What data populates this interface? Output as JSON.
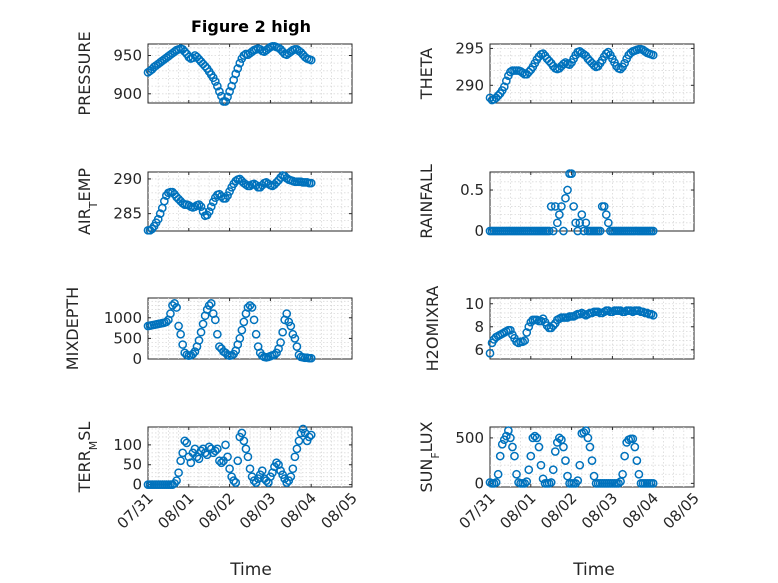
{
  "figure": {
    "marker_color": "#0072BD",
    "x_axis": {
      "min": "07/31",
      "max": "08/05",
      "ticks": [
        "07/31",
        "08/01",
        "08/02",
        "08/03",
        "08/04",
        "08/05"
      ],
      "label": "Time"
    }
  },
  "chart_data": [
    {
      "type": "scatter",
      "title": "Figure 2 high",
      "ylabel": "PRESSURE",
      "ylim": [
        888,
        965
      ],
      "yticks": [
        900,
        950
      ],
      "x": [
        0.0,
        0.05,
        0.1,
        0.15,
        0.2,
        0.25,
        0.3,
        0.35,
        0.4,
        0.45,
        0.5,
        0.55,
        0.6,
        0.65,
        0.7,
        0.75,
        0.8,
        0.85,
        0.9,
        0.95,
        1.0,
        1.05,
        1.1,
        1.15,
        1.2,
        1.25,
        1.3,
        1.35,
        1.4,
        1.45,
        1.5,
        1.55,
        1.6,
        1.65,
        1.7,
        1.75,
        1.8,
        1.85,
        1.9,
        1.95,
        2.0,
        2.05,
        2.1,
        2.15,
        2.2,
        2.25,
        2.3,
        2.35,
        2.4,
        2.45,
        2.5,
        2.55,
        2.6,
        2.65,
        2.7,
        2.75,
        2.8,
        2.85,
        2.9,
        2.95,
        3.0,
        3.05,
        3.1,
        3.15,
        3.2,
        3.25,
        3.3,
        3.35,
        3.4,
        3.45,
        3.5,
        3.55,
        3.6,
        3.65,
        3.7,
        3.75,
        3.8,
        3.85,
        3.9,
        3.95,
        4.0
      ],
      "y": [
        928,
        930,
        932,
        935,
        937,
        939,
        941,
        943,
        945,
        947,
        949,
        951,
        953,
        955,
        957,
        958,
        959,
        958,
        955,
        952,
        948,
        946,
        947,
        950,
        948,
        945,
        942,
        939,
        936,
        933,
        929,
        925,
        921,
        916,
        910,
        903,
        897,
        890,
        890,
        896,
        903,
        910,
        918,
        926,
        933,
        940,
        946,
        950,
        952,
        951,
        953,
        955,
        957,
        958,
        959,
        958,
        956,
        955,
        957,
        959,
        961,
        962,
        962,
        961,
        960,
        958,
        955,
        952,
        951,
        953,
        955,
        957,
        958,
        958,
        956,
        954,
        951,
        948,
        946,
        945,
        944
      ]
    },
    {
      "type": "scatter",
      "ylabel": "THETA",
      "ylim": [
        287.6,
        295.6
      ],
      "yticks": [
        290,
        295
      ],
      "x": [
        0.0,
        0.05,
        0.1,
        0.15,
        0.2,
        0.25,
        0.3,
        0.35,
        0.4,
        0.45,
        0.5,
        0.55,
        0.6,
        0.65,
        0.7,
        0.75,
        0.8,
        0.85,
        0.9,
        0.95,
        1.0,
        1.05,
        1.1,
        1.15,
        1.2,
        1.25,
        1.3,
        1.35,
        1.4,
        1.45,
        1.5,
        1.55,
        1.6,
        1.65,
        1.7,
        1.75,
        1.8,
        1.85,
        1.9,
        1.95,
        2.0,
        2.05,
        2.1,
        2.15,
        2.2,
        2.25,
        2.3,
        2.35,
        2.4,
        2.45,
        2.5,
        2.55,
        2.6,
        2.65,
        2.7,
        2.75,
        2.8,
        2.85,
        2.9,
        2.95,
        3.0,
        3.05,
        3.1,
        3.15,
        3.2,
        3.25,
        3.3,
        3.35,
        3.4,
        3.45,
        3.5,
        3.55,
        3.6,
        3.65,
        3.7,
        3.75,
        3.8,
        3.85,
        3.9,
        3.95,
        4.0
      ],
      "y": [
        288.3,
        288.0,
        288.1,
        288.3,
        288.6,
        288.9,
        289.3,
        289.8,
        290.6,
        291.3,
        291.8,
        292.0,
        292.0,
        292.0,
        292.0,
        291.9,
        291.7,
        291.5,
        291.5,
        291.8,
        292.1,
        292.5,
        293.0,
        293.5,
        293.9,
        294.2,
        294.3,
        294.0,
        293.6,
        293.3,
        293.0,
        292.6,
        292.3,
        292.2,
        292.3,
        292.6,
        292.9,
        293.1,
        292.9,
        292.8,
        293.1,
        293.6,
        294.1,
        294.5,
        294.6,
        294.4,
        294.2,
        294.0,
        293.6,
        293.3,
        293.0,
        292.7,
        292.5,
        292.6,
        293.0,
        293.4,
        293.9,
        294.3,
        294.5,
        294.1,
        293.6,
        293.1,
        292.6,
        292.3,
        292.2,
        292.5,
        293.0,
        293.6,
        294.1,
        294.4,
        294.6,
        294.7,
        294.8,
        294.9,
        294.9,
        294.8,
        294.6,
        294.4,
        294.3,
        294.2,
        294.1
      ]
    },
    {
      "type": "scatter",
      "ylabel": "AIR_TEMP",
      "ylim": [
        282.5,
        291.0
      ],
      "yticks": [
        285,
        290
      ],
      "x": [
        0.0,
        0.05,
        0.1,
        0.15,
        0.2,
        0.25,
        0.3,
        0.35,
        0.4,
        0.45,
        0.5,
        0.55,
        0.6,
        0.65,
        0.7,
        0.75,
        0.8,
        0.85,
        0.9,
        0.95,
        1.0,
        1.05,
        1.1,
        1.15,
        1.2,
        1.25,
        1.3,
        1.35,
        1.4,
        1.45,
        1.5,
        1.55,
        1.6,
        1.65,
        1.7,
        1.75,
        1.8,
        1.85,
        1.9,
        1.95,
        2.0,
        2.05,
        2.1,
        2.15,
        2.2,
        2.25,
        2.3,
        2.35,
        2.4,
        2.45,
        2.5,
        2.55,
        2.6,
        2.65,
        2.7,
        2.75,
        2.8,
        2.85,
        2.9,
        2.95,
        3.0,
        3.05,
        3.1,
        3.15,
        3.2,
        3.25,
        3.3,
        3.35,
        3.4,
        3.45,
        3.5,
        3.55,
        3.6,
        3.65,
        3.7,
        3.75,
        3.8,
        3.85,
        3.9,
        3.95,
        4.0
      ],
      "y": [
        282.6,
        282.6,
        282.8,
        283.2,
        283.7,
        284.2,
        285.0,
        285.8,
        286.8,
        287.6,
        288.0,
        288.1,
        288.1,
        287.8,
        287.4,
        287.1,
        286.8,
        286.5,
        286.3,
        286.3,
        286.2,
        286.0,
        285.9,
        286.0,
        286.2,
        286.3,
        286.0,
        285.3,
        284.7,
        284.8,
        285.3,
        286.0,
        286.7,
        287.3,
        287.7,
        287.8,
        287.5,
        287.2,
        287.2,
        287.6,
        288.2,
        288.8,
        289.3,
        289.7,
        289.9,
        290.0,
        289.7,
        289.4,
        289.2,
        289.0,
        289.0,
        289.2,
        289.3,
        289.1,
        288.8,
        288.8,
        289.1,
        289.4,
        289.5,
        289.3,
        289.1,
        289.0,
        289.2,
        289.5,
        289.8,
        290.2,
        290.5,
        290.4,
        290.1,
        289.9,
        289.8,
        289.7,
        289.6,
        289.6,
        289.6,
        289.6,
        289.5,
        289.5,
        289.5,
        289.4,
        289.4
      ]
    },
    {
      "type": "scatter",
      "ylabel": "RAINFALL",
      "ylim": [
        0,
        0.72
      ],
      "yticks": [
        0,
        0.5
      ],
      "x": [
        0.0,
        0.05,
        0.1,
        0.15,
        0.2,
        0.25,
        0.3,
        0.35,
        0.4,
        0.45,
        0.5,
        0.55,
        0.6,
        0.65,
        0.7,
        0.75,
        0.8,
        0.85,
        0.9,
        0.95,
        1.0,
        1.05,
        1.1,
        1.15,
        1.2,
        1.25,
        1.3,
        1.35,
        1.4,
        1.45,
        1.5,
        1.55,
        1.6,
        1.65,
        1.7,
        1.75,
        1.8,
        1.85,
        1.9,
        1.95,
        2.0,
        2.05,
        2.1,
        2.15,
        2.2,
        2.25,
        2.3,
        2.35,
        2.4,
        2.45,
        2.5,
        2.55,
        2.6,
        2.65,
        2.7,
        2.75,
        2.8,
        2.85,
        2.9,
        2.95,
        3.0,
        3.05,
        3.1,
        3.15,
        3.2,
        3.25,
        3.3,
        3.35,
        3.4,
        3.45,
        3.5,
        3.55,
        3.6,
        3.65,
        3.7,
        3.75,
        3.8,
        3.85,
        3.9,
        3.95,
        4.0
      ],
      "y": [
        0,
        0,
        0,
        0,
        0,
        0,
        0,
        0,
        0,
        0,
        0,
        0,
        0,
        0,
        0,
        0,
        0,
        0,
        0,
        0,
        0,
        0,
        0,
        0,
        0,
        0,
        0,
        0,
        0,
        0,
        0.3,
        0,
        0.3,
        0.1,
        0.2,
        0.3,
        0,
        0.4,
        0.5,
        0.7,
        0.7,
        0.3,
        0.1,
        0,
        0.1,
        0.2,
        0,
        0.1,
        0,
        0,
        0,
        0,
        0,
        0,
        0,
        0.3,
        0.3,
        0.2,
        0.1,
        0,
        0,
        0,
        0,
        0,
        0,
        0,
        0,
        0,
        0,
        0,
        0,
        0,
        0,
        0,
        0,
        0,
        0,
        0,
        0,
        0,
        0
      ]
    },
    {
      "type": "scatter",
      "ylabel": "MIXDEPTH",
      "ylim": [
        0,
        1480
      ],
      "yticks": [
        0,
        500,
        1000
      ],
      "x": [
        0.0,
        0.05,
        0.1,
        0.15,
        0.2,
        0.25,
        0.3,
        0.35,
        0.4,
        0.45,
        0.5,
        0.55,
        0.6,
        0.65,
        0.7,
        0.75,
        0.8,
        0.85,
        0.9,
        0.95,
        1.0,
        1.05,
        1.1,
        1.15,
        1.2,
        1.25,
        1.3,
        1.35,
        1.4,
        1.45,
        1.5,
        1.55,
        1.6,
        1.65,
        1.7,
        1.75,
        1.8,
        1.85,
        1.9,
        1.95,
        2.0,
        2.05,
        2.1,
        2.15,
        2.2,
        2.25,
        2.3,
        2.35,
        2.4,
        2.45,
        2.5,
        2.55,
        2.6,
        2.65,
        2.7,
        2.75,
        2.8,
        2.85,
        2.9,
        2.95,
        3.0,
        3.05,
        3.1,
        3.15,
        3.2,
        3.25,
        3.3,
        3.35,
        3.4,
        3.45,
        3.5,
        3.55,
        3.6,
        3.65,
        3.7,
        3.75,
        3.8,
        3.85,
        3.9,
        3.95,
        4.0
      ],
      "y": [
        800,
        810,
        820,
        830,
        840,
        850,
        860,
        870,
        880,
        900,
        950,
        1100,
        1300,
        1350,
        1250,
        800,
        600,
        350,
        150,
        100,
        80,
        90,
        120,
        180,
        300,
        450,
        650,
        850,
        1050,
        1200,
        1300,
        1350,
        1100,
        950,
        600,
        300,
        250,
        180,
        150,
        100,
        80,
        90,
        120,
        200,
        350,
        500,
        700,
        900,
        1100,
        1250,
        1300,
        1250,
        950,
        600,
        300,
        150,
        80,
        50,
        40,
        50,
        70,
        90,
        100,
        150,
        250,
        400,
        650,
        950,
        1100,
        900,
        800,
        600,
        500,
        300,
        100,
        50,
        40,
        30,
        30,
        20,
        20
      ]
    },
    {
      "type": "scatter",
      "ylabel": "H2OMIXRA",
      "ylim": [
        5.2,
        10.5
      ],
      "yticks": [
        6,
        8,
        10
      ],
      "x": [
        0.0,
        0.05,
        0.1,
        0.15,
        0.2,
        0.25,
        0.3,
        0.35,
        0.4,
        0.45,
        0.5,
        0.55,
        0.6,
        0.65,
        0.7,
        0.75,
        0.8,
        0.85,
        0.9,
        0.95,
        1.0,
        1.05,
        1.1,
        1.15,
        1.2,
        1.25,
        1.3,
        1.35,
        1.4,
        1.45,
        1.5,
        1.55,
        1.6,
        1.65,
        1.7,
        1.75,
        1.8,
        1.85,
        1.9,
        1.95,
        2.0,
        2.05,
        2.1,
        2.15,
        2.2,
        2.25,
        2.3,
        2.35,
        2.4,
        2.45,
        2.5,
        2.55,
        2.6,
        2.65,
        2.7,
        2.75,
        2.8,
        2.85,
        2.9,
        2.95,
        3.0,
        3.05,
        3.1,
        3.15,
        3.2,
        3.25,
        3.3,
        3.35,
        3.4,
        3.45,
        3.5,
        3.55,
        3.6,
        3.65,
        3.7,
        3.75,
        3.8,
        3.85,
        3.9,
        3.95,
        4.0
      ],
      "y": [
        5.7,
        6.6,
        6.9,
        7.1,
        7.2,
        7.3,
        7.4,
        7.5,
        7.6,
        7.7,
        7.7,
        7.3,
        7.0,
        6.7,
        6.6,
        6.7,
        6.7,
        6.8,
        7.5,
        8.0,
        8.4,
        8.6,
        8.6,
        8.6,
        8.5,
        8.5,
        8.7,
        8.4,
        8.1,
        7.9,
        7.9,
        8.1,
        8.3,
        8.6,
        8.7,
        8.8,
        8.8,
        8.8,
        8.8,
        8.9,
        8.9,
        8.9,
        9.0,
        9.1,
        9.1,
        9.2,
        9.1,
        9.0,
        9.1,
        9.2,
        9.2,
        9.3,
        9.3,
        9.3,
        9.2,
        9.2,
        9.3,
        9.4,
        9.4,
        9.3,
        9.3,
        9.4,
        9.4,
        9.4,
        9.4,
        9.3,
        9.3,
        9.4,
        9.4,
        9.4,
        9.3,
        9.4,
        9.4,
        9.4,
        9.3,
        9.3,
        9.2,
        9.2,
        9.1,
        9.1,
        9.0
      ]
    },
    {
      "type": "scatter",
      "ylabel": "TERR_MSL",
      "ylim": [
        -6,
        145
      ],
      "yticks": [
        0,
        50,
        100
      ],
      "x": [
        0.0,
        0.05,
        0.1,
        0.15,
        0.2,
        0.25,
        0.3,
        0.35,
        0.4,
        0.45,
        0.5,
        0.55,
        0.6,
        0.65,
        0.7,
        0.75,
        0.8,
        0.85,
        0.9,
        0.95,
        1.0,
        1.05,
        1.1,
        1.15,
        1.2,
        1.25,
        1.3,
        1.35,
        1.4,
        1.45,
        1.5,
        1.55,
        1.6,
        1.65,
        1.7,
        1.75,
        1.8,
        1.85,
        1.9,
        1.95,
        2.0,
        2.05,
        2.1,
        2.15,
        2.2,
        2.25,
        2.3,
        2.35,
        2.4,
        2.45,
        2.5,
        2.55,
        2.6,
        2.65,
        2.7,
        2.75,
        2.8,
        2.85,
        2.9,
        2.95,
        3.0,
        3.05,
        3.1,
        3.15,
        3.2,
        3.25,
        3.3,
        3.35,
        3.4,
        3.45,
        3.5,
        3.55,
        3.6,
        3.65,
        3.7,
        3.75,
        3.8,
        3.85,
        3.9,
        3.95,
        4.0
      ],
      "y": [
        0,
        0,
        0,
        0,
        0,
        0,
        0,
        0,
        0,
        0,
        0,
        0,
        0,
        3,
        10,
        30,
        60,
        80,
        110,
        105,
        70,
        55,
        80,
        90,
        70,
        65,
        85,
        90,
        80,
        75,
        95,
        90,
        80,
        85,
        90,
        60,
        55,
        60,
        100,
        70,
        40,
        20,
        10,
        5,
        60,
        120,
        130,
        110,
        90,
        70,
        40,
        20,
        10,
        5,
        15,
        25,
        35,
        15,
        10,
        5,
        20,
        30,
        45,
        55,
        50,
        35,
        25,
        15,
        5,
        10,
        20,
        40,
        70,
        90,
        110,
        130,
        140,
        130,
        110,
        120,
        125
      ]
    },
    {
      "type": "scatter",
      "ylabel": "SUN_FLUX",
      "ylim": [
        -40,
        620
      ],
      "yticks": [
        0,
        500
      ],
      "x": [
        0.0,
        0.05,
        0.1,
        0.15,
        0.2,
        0.25,
        0.3,
        0.35,
        0.4,
        0.45,
        0.5,
        0.55,
        0.6,
        0.65,
        0.7,
        0.75,
        0.8,
        0.85,
        0.9,
        0.95,
        1.0,
        1.05,
        1.1,
        1.15,
        1.2,
        1.25,
        1.3,
        1.35,
        1.4,
        1.45,
        1.5,
        1.55,
        1.6,
        1.65,
        1.7,
        1.75,
        1.8,
        1.85,
        1.9,
        1.95,
        2.0,
        2.05,
        2.1,
        2.15,
        2.2,
        2.25,
        2.3,
        2.35,
        2.4,
        2.45,
        2.5,
        2.55,
        2.6,
        2.65,
        2.7,
        2.75,
        2.8,
        2.85,
        2.9,
        2.95,
        3.0,
        3.05,
        3.1,
        3.15,
        3.2,
        3.25,
        3.3,
        3.35,
        3.4,
        3.45,
        3.5,
        3.55,
        3.6,
        3.65,
        3.7,
        3.75,
        3.8,
        3.85,
        3.9,
        3.95,
        4.0
      ],
      "y": [
        10,
        0,
        0,
        10,
        100,
        300,
        430,
        480,
        520,
        580,
        500,
        400,
        300,
        100,
        10,
        0,
        0,
        0,
        20,
        150,
        300,
        500,
        520,
        500,
        400,
        200,
        50,
        0,
        0,
        0,
        10,
        150,
        350,
        450,
        500,
        480,
        400,
        250,
        80,
        0,
        0,
        0,
        0,
        30,
        200,
        550,
        560,
        580,
        500,
        400,
        250,
        80,
        0,
        0,
        0,
        0,
        0,
        0,
        0,
        0,
        0,
        0,
        0,
        0,
        20,
        100,
        300,
        450,
        480,
        490,
        490,
        400,
        250,
        100,
        0,
        0,
        0,
        0,
        0,
        0,
        0
      ]
    }
  ]
}
